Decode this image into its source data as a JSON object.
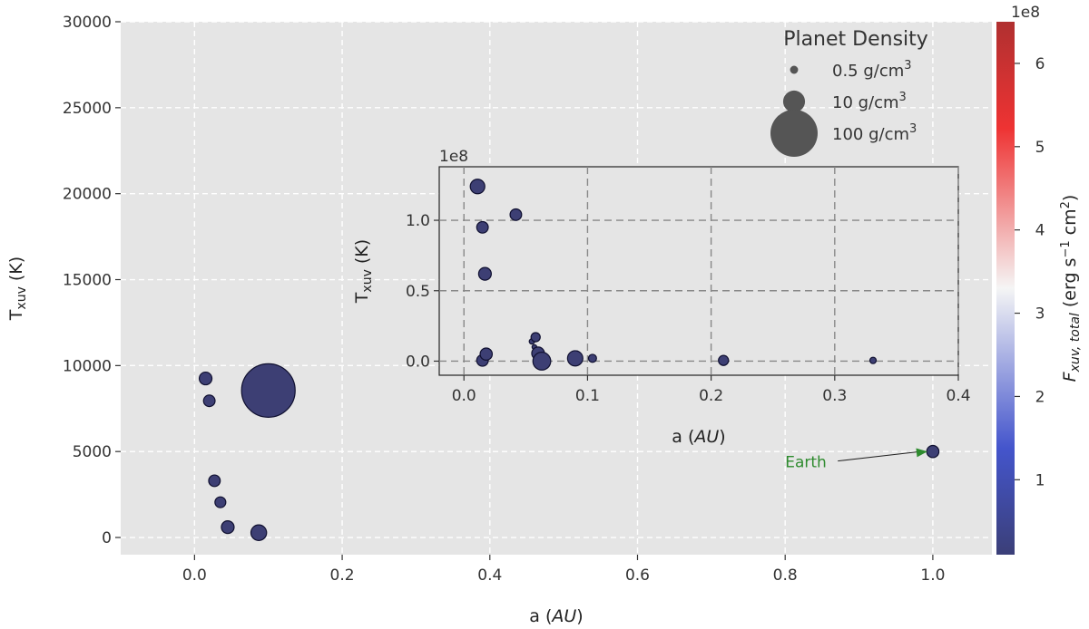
{
  "chart_data": [
    {
      "type": "scatter",
      "id": "main",
      "xlabel_prefix": "a (",
      "xlabel_italic": "AU",
      "xlabel_suffix": ")",
      "ylabel_main": "T",
      "ylabel_sub": "xuv",
      "ylabel_suffix": " (K)",
      "xlim": [
        -0.1,
        1.08
      ],
      "ylim": [
        -1000,
        30000
      ],
      "xticks": [
        0.0,
        0.2,
        0.4,
        0.6,
        0.8,
        1.0
      ],
      "xtick_labels": [
        "0.0",
        "0.2",
        "0.4",
        "0.6",
        "0.8",
        "1.0"
      ],
      "yticks": [
        0,
        5000,
        10000,
        15000,
        20000,
        25000,
        30000
      ],
      "ytick_labels": [
        "0",
        "5000",
        "10000",
        "15000",
        "20000",
        "25000",
        "30000"
      ],
      "grid": true,
      "points": [
        {
          "x": 0.015,
          "y": 9250,
          "density": 8
        },
        {
          "x": 0.02,
          "y": 7950,
          "density": 6
        },
        {
          "x": 0.1,
          "y": 8550,
          "density": 600
        },
        {
          "x": 0.027,
          "y": 3300,
          "density": 6
        },
        {
          "x": 0.035,
          "y": 2050,
          "density": 5
        },
        {
          "x": 0.045,
          "y": 600,
          "density": 8
        },
        {
          "x": 0.087,
          "y": 280,
          "density": 15
        },
        {
          "x": 1.0,
          "y": 5000,
          "density": 7
        }
      ],
      "annotation": {
        "text": "Earth",
        "x": 1.0,
        "y": 5000,
        "text_x": 0.8,
        "text_y": 4500,
        "color": "#2e8b2e"
      }
    },
    {
      "type": "scatter",
      "id": "inset",
      "offset_text": "1e8",
      "xlabel_prefix": "a (",
      "xlabel_italic": "AU",
      "xlabel_suffix": ")",
      "ylabel_main": "T",
      "ylabel_sub": "xuv",
      "ylabel_suffix": " (K)",
      "xlim": [
        -0.02,
        0.4
      ],
      "ylim": [
        -0.1,
        1.38
      ],
      "xticks": [
        0.0,
        0.1,
        0.2,
        0.3,
        0.4
      ],
      "xtick_labels": [
        "0.0",
        "0.1",
        "0.2",
        "0.3",
        "0.4"
      ],
      "yticks": [
        0.0,
        0.5,
        1.0
      ],
      "ytick_labels": [
        "0.0",
        "0.5",
        "1.0"
      ],
      "grid": true,
      "points": [
        {
          "x": 0.011,
          "y": 1.24,
          "density": 12
        },
        {
          "x": 0.015,
          "y": 0.95,
          "density": 6
        },
        {
          "x": 0.017,
          "y": 0.62,
          "density": 8
        },
        {
          "x": 0.042,
          "y": 1.04,
          "density": 6
        },
        {
          "x": 0.015,
          "y": 0.005,
          "density": 6
        },
        {
          "x": 0.018,
          "y": 0.05,
          "density": 7
        },
        {
          "x": 0.055,
          "y": 0.14,
          "density": 0.6
        },
        {
          "x": 0.058,
          "y": 0.17,
          "density": 3
        },
        {
          "x": 0.057,
          "y": 0.1,
          "density": 0.4
        },
        {
          "x": 0.06,
          "y": 0.055,
          "density": 8
        },
        {
          "x": 0.063,
          "y": 0.0,
          "density": 22
        },
        {
          "x": 0.09,
          "y": 0.02,
          "density": 14
        },
        {
          "x": 0.104,
          "y": 0.02,
          "density": 2
        },
        {
          "x": 0.21,
          "y": 0.005,
          "density": 4
        },
        {
          "x": 0.331,
          "y": 0.005,
          "density": 1
        }
      ]
    }
  ],
  "legend": {
    "title": "Planet Density",
    "placement": "top-right",
    "items": [
      {
        "label": "0.5 g/cm",
        "sup": "3",
        "density": 0.5
      },
      {
        "label": "10 g/cm",
        "sup": "3",
        "density": 10
      },
      {
        "label": "100 g/cm",
        "sup": "3",
        "density": 100
      }
    ]
  },
  "colorbar": {
    "offset_text": "1e8",
    "label_main": "F",
    "label_sub": "xuv, total",
    "label_units_open": " (erg s",
    "label_units_sup": "−1",
    "label_units_mid": " cm",
    "label_units_sup2": "2",
    "label_units_close": ")",
    "range": [
      0.1,
      6.5
    ],
    "ticks": [
      1,
      2,
      3,
      4,
      5,
      6
    ],
    "tick_labels": [
      "1",
      "2",
      "3",
      "4",
      "5",
      "6"
    ],
    "colors": {
      "low": "#3b3f78",
      "mid": "#f5f5f5",
      "high": "#b03030"
    }
  }
}
